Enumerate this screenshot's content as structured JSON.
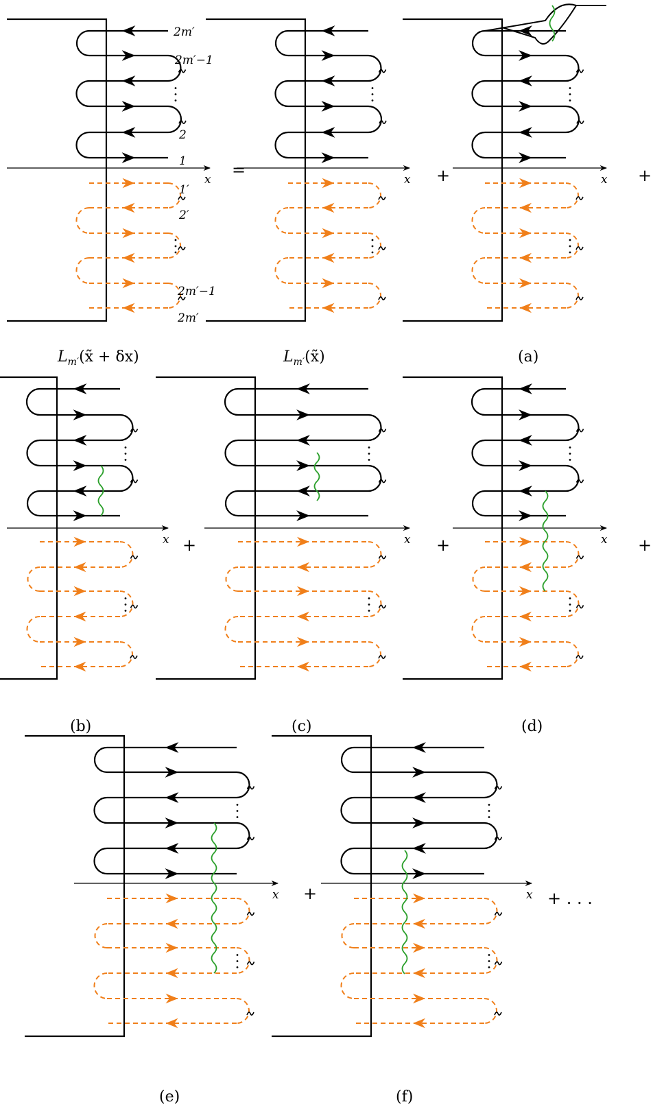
{
  "colors": {
    "contour": "#000000",
    "contour_lower": "#f07f1a",
    "wiggle": "#2ca02c"
  },
  "axis_label": "x",
  "lead_labels": {
    "upper": [
      "2m′",
      "2m′−1",
      "2",
      "1"
    ],
    "lower": [
      "1′",
      "2′",
      "2m′−1",
      "2m′"
    ]
  },
  "operators": {
    "equals": "=",
    "plus": "+",
    "trailing": "+ . . ."
  },
  "captions": {
    "lhs": "L_{m′}(x̃ + δx)",
    "lhs_text": "L",
    "lhs_sub": "m′",
    "lhs_arg": "(x̃ + δx)",
    "rhs0_text": "L",
    "rhs0_sub": "m′",
    "rhs0_arg": "(x̃)",
    "a": "(a)",
    "b": "(b)",
    "c": "(c)",
    "d": "(d)",
    "e": "(e)",
    "f": "(f)"
  }
}
